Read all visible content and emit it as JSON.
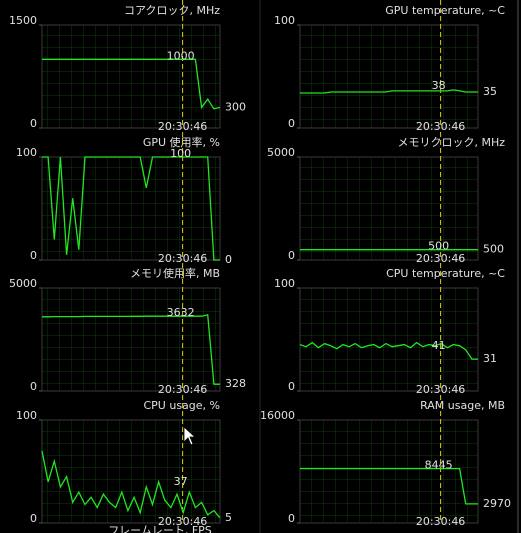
{
  "chart_data": [
    {
      "type": "line",
      "title": "コアクロック, MHz",
      "ylim": [
        0,
        1500
      ],
      "yticks": [
        0,
        1500
      ],
      "cursor_time": "20:30:46",
      "cursor_value": 1000,
      "series": [
        {
          "color": "#22e622",
          "values": [
            1000,
            1000,
            1000,
            1000,
            1000,
            1000,
            1000,
            1000,
            1000,
            1000,
            1000,
            1000,
            1000,
            1000,
            1000,
            1000,
            1000,
            1000,
            1000,
            1000,
            1000,
            1000,
            1000,
            1000,
            1000,
            1000,
            300,
            420,
            280,
            300
          ]
        }
      ]
    },
    {
      "type": "line",
      "title": "GPU temperature, ~C",
      "ylim": [
        0,
        100
      ],
      "yticks": [
        0,
        100
      ],
      "cursor_time": "20:30:46",
      "cursor_value": 38,
      "series": [
        {
          "color": "#22e622",
          "values": [
            34,
            34,
            34,
            34,
            34,
            35,
            35,
            35,
            35,
            35,
            35,
            35,
            35,
            35,
            35,
            36,
            36,
            36,
            36,
            36,
            36,
            36,
            36,
            36,
            36,
            37,
            36,
            35,
            35,
            35
          ]
        }
      ]
    },
    {
      "type": "line",
      "title": "GPU 使用率, %",
      "ylim": [
        0,
        100
      ],
      "yticks": [
        0,
        100
      ],
      "cursor_time": "20:30:46",
      "cursor_value": 100,
      "series": [
        {
          "color": "#22e622",
          "values": [
            100,
            100,
            20,
            100,
            5,
            60,
            10,
            100,
            100,
            100,
            100,
            100,
            100,
            100,
            100,
            100,
            100,
            70,
            100,
            100,
            100,
            100,
            100,
            100,
            100,
            100,
            100,
            100,
            0,
            0
          ]
        }
      ]
    },
    {
      "type": "line",
      "title": "メモリクロック, MHz",
      "ylim": [
        0,
        5000
      ],
      "yticks": [
        0,
        5000
      ],
      "cursor_time": "20:30:46",
      "cursor_value": 500,
      "series": [
        {
          "color": "#22e622",
          "values": [
            500,
            500,
            500,
            500,
            500,
            500,
            500,
            500,
            500,
            500,
            500,
            500,
            500,
            500,
            500,
            500,
            500,
            500,
            500,
            500,
            500,
            500,
            500,
            500,
            500,
            500,
            500,
            500,
            500,
            500
          ]
        }
      ]
    },
    {
      "type": "line",
      "title": "メモリ使用率, MB",
      "ylim": [
        0,
        5000
      ],
      "yticks": [
        0,
        5000
      ],
      "cursor_time": "20:30:46",
      "cursor_value": 3632,
      "series": [
        {
          "color": "#22e622",
          "values": [
            3600,
            3600,
            3610,
            3610,
            3610,
            3610,
            3610,
            3620,
            3620,
            3620,
            3620,
            3620,
            3620,
            3620,
            3620,
            3625,
            3625,
            3630,
            3630,
            3630,
            3630,
            3632,
            3632,
            3632,
            3632,
            3632,
            3632,
            3700,
            328,
            328
          ]
        }
      ]
    },
    {
      "type": "line",
      "title": "CPU temperature, ~C",
      "ylim": [
        0,
        100
      ],
      "yticks": [
        0,
        100
      ],
      "cursor_time": "20:30:46",
      "cursor_value": 41,
      "series": [
        {
          "color": "#22e622",
          "values": [
            45,
            43,
            47,
            42,
            46,
            44,
            41,
            45,
            43,
            46,
            42,
            44,
            45,
            42,
            46,
            43,
            44,
            45,
            42,
            47,
            43,
            45,
            44,
            46,
            42,
            45,
            44,
            40,
            31,
            31
          ]
        }
      ]
    },
    {
      "type": "line",
      "title": "CPU usage, %",
      "ylim": [
        0,
        100
      ],
      "yticks": [
        0,
        100
      ],
      "cursor_time": "20:30:46",
      "cursor_value": 37,
      "series": [
        {
          "color": "#22e622",
          "values": [
            70,
            40,
            60,
            35,
            45,
            20,
            30,
            18,
            25,
            15,
            28,
            20,
            15,
            30,
            12,
            25,
            10,
            35,
            18,
            40,
            22,
            15,
            28,
            10,
            30,
            15,
            20,
            8,
            12,
            5
          ]
        }
      ]
    },
    {
      "type": "line",
      "title": "RAM usage, MB",
      "ylim": [
        0,
        16000
      ],
      "yticks": [
        0,
        16000
      ],
      "cursor_time": "20:30:46",
      "cursor_value": 8445,
      "series": [
        {
          "color": "#22e622",
          "values": [
            8445,
            8445,
            8445,
            8445,
            8445,
            8445,
            8445,
            8445,
            8445,
            8445,
            8445,
            8445,
            8445,
            8445,
            8445,
            8445,
            8445,
            8445,
            8445,
            8445,
            8445,
            8445,
            8445,
            8445,
            8445,
            8445,
            8445,
            2970,
            2970,
            2970
          ]
        }
      ]
    }
  ],
  "footer_title": "フレームレート, FPS"
}
